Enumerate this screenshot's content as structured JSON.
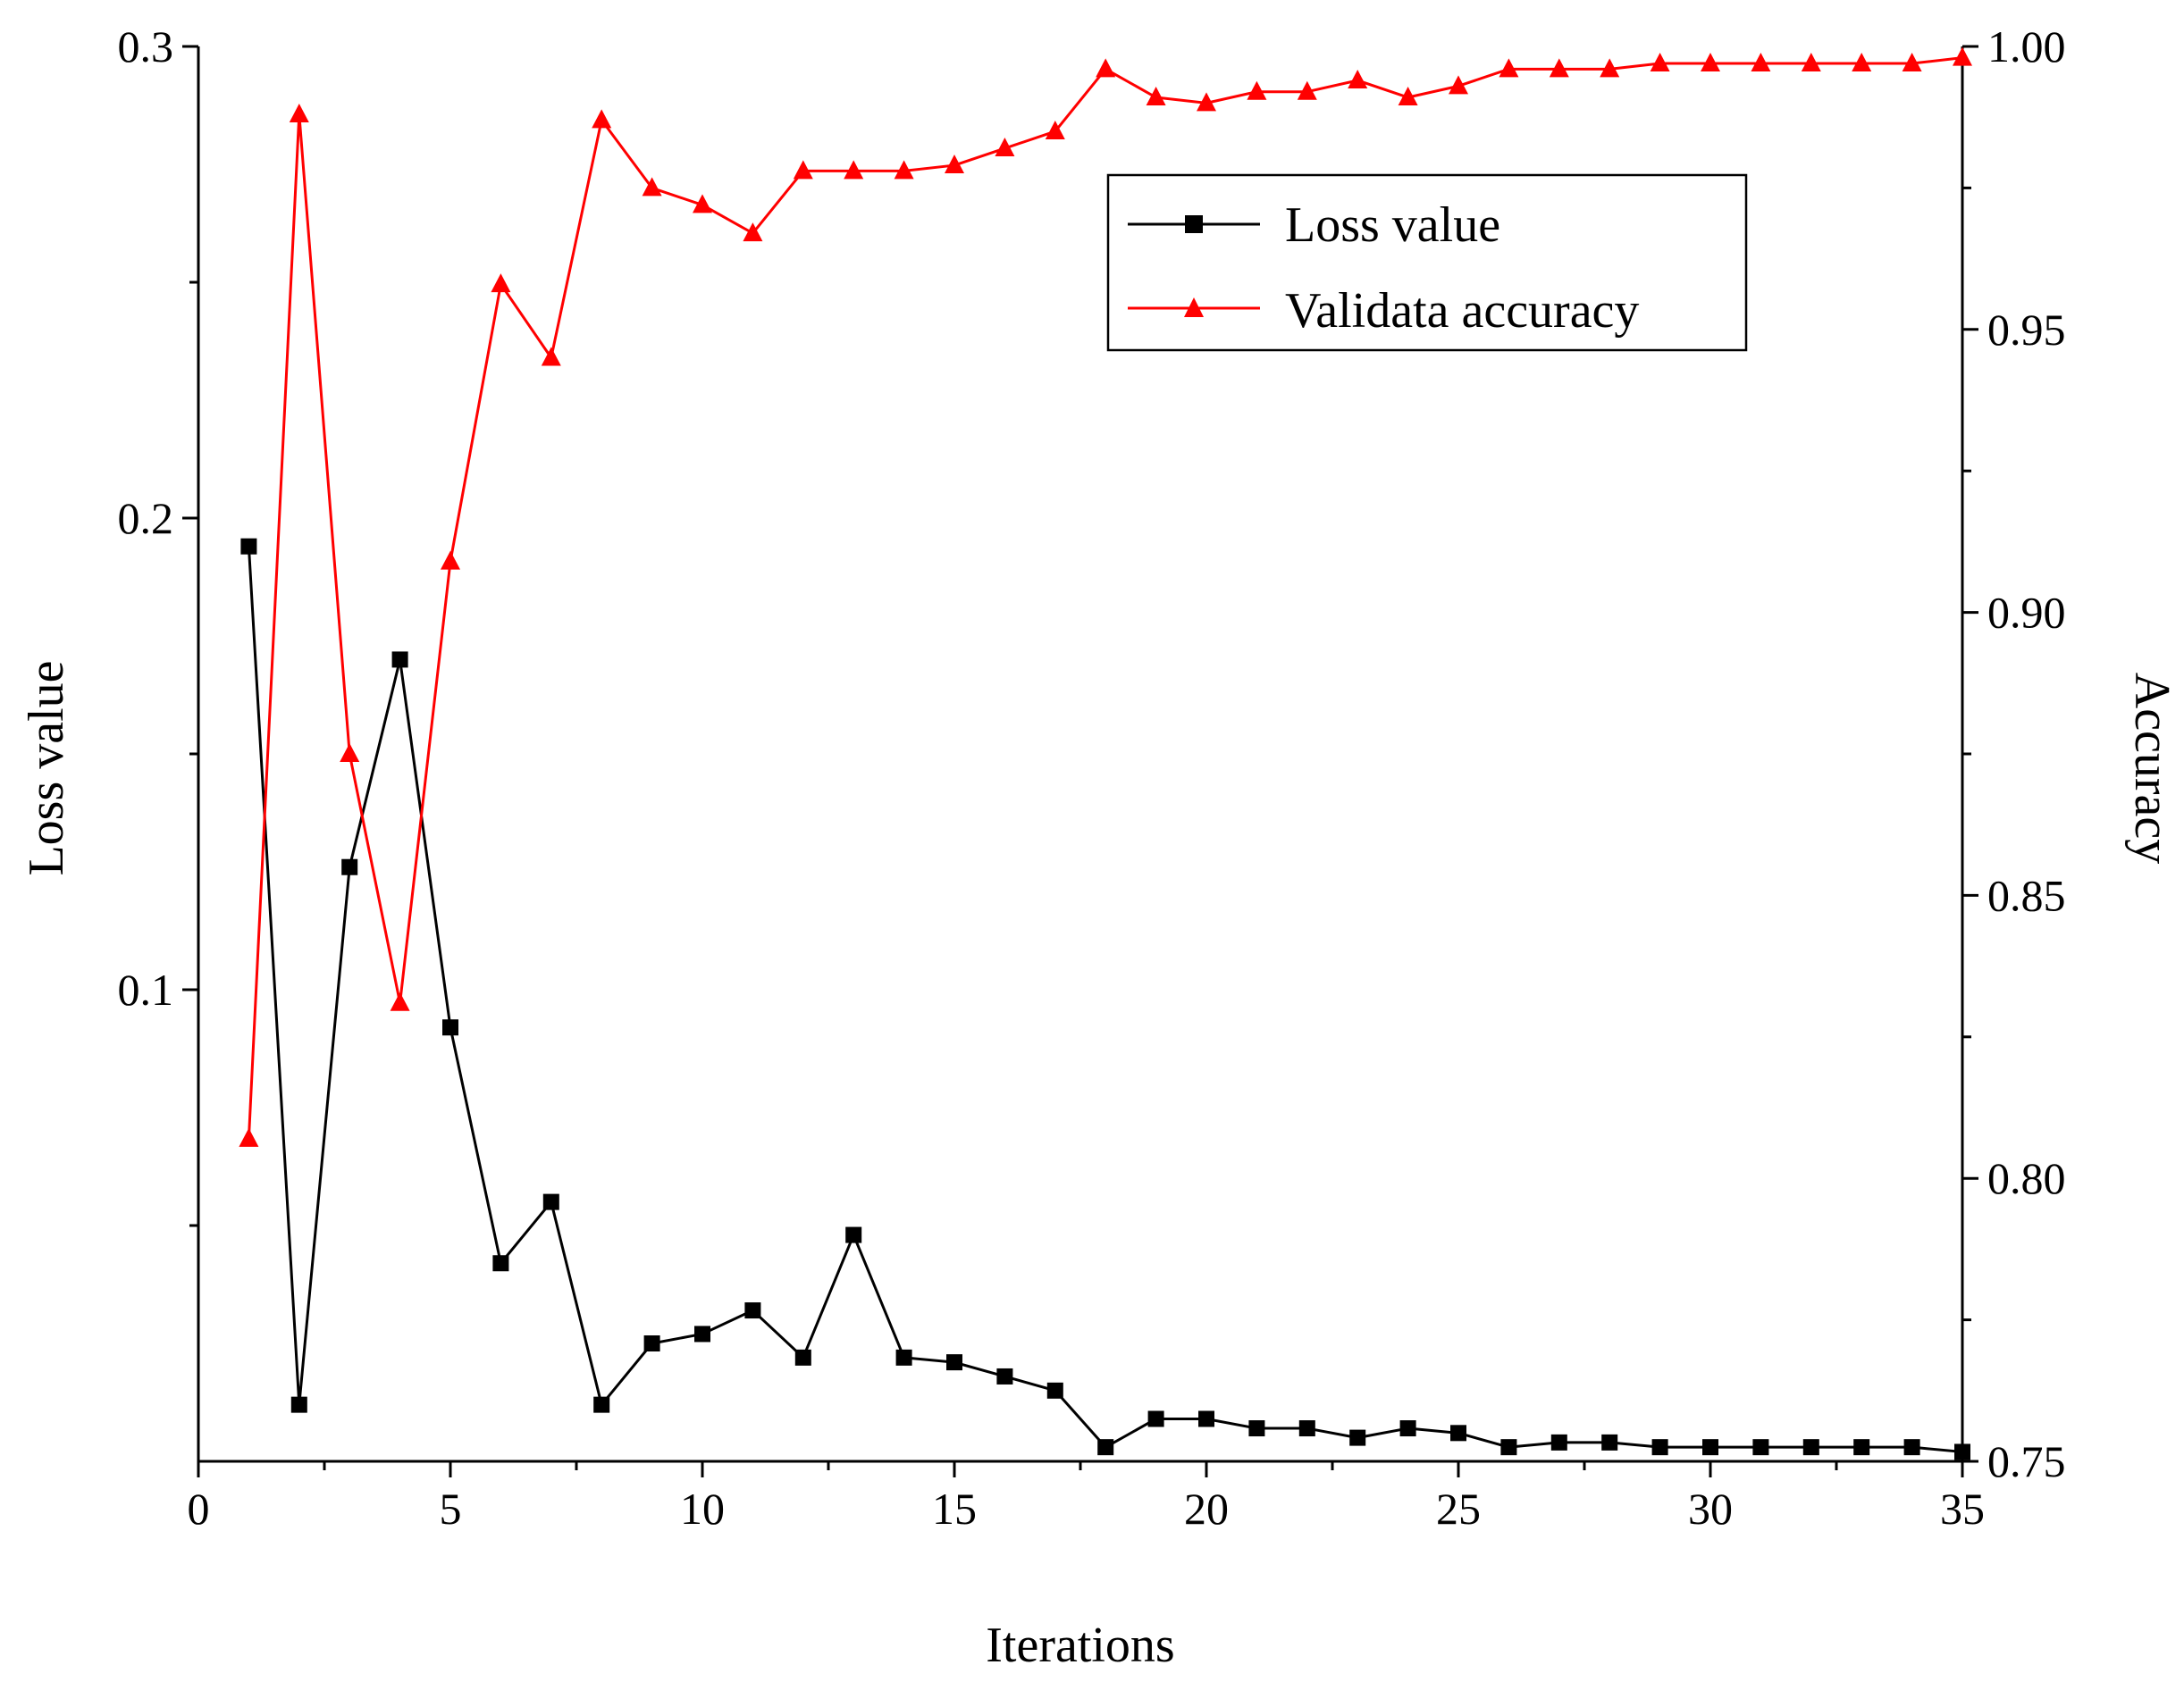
{
  "chart_data": {
    "type": "line",
    "xlabel": "Iterations",
    "ylabel_left": "Loss value",
    "ylabel_right": "Accuracy",
    "xlim": [
      0,
      35
    ],
    "ylim_left": [
      0,
      0.3
    ],
    "ylim_right": [
      0.75,
      1.0
    ],
    "x_ticks": [
      "0",
      "5",
      "10",
      "15",
      "20",
      "25",
      "30",
      "35"
    ],
    "y_left_ticks": [
      "0.1",
      "0.2",
      "0.3"
    ],
    "y_right_ticks": [
      "0.75",
      "0.80",
      "0.85",
      "0.90",
      "0.95",
      "1.00"
    ],
    "grid": false,
    "legend_position": "top-right",
    "series": [
      {
        "name": "Loss value",
        "axis": "left",
        "color": "#000000",
        "marker": "square",
        "x": [
          1,
          2,
          3,
          4,
          5,
          6,
          7,
          8,
          9,
          10,
          11,
          12,
          13,
          14,
          15,
          16,
          17,
          18,
          19,
          20,
          21,
          22,
          23,
          24,
          25,
          26,
          27,
          28,
          29,
          30,
          31,
          32,
          33,
          34,
          35
        ],
        "values": [
          0.194,
          0.012,
          0.126,
          0.17,
          0.092,
          0.042,
          0.055,
          0.012,
          0.025,
          0.027,
          0.032,
          0.022,
          0.048,
          0.022,
          0.021,
          0.018,
          0.015,
          0.003,
          0.009,
          0.009,
          0.007,
          0.007,
          0.005,
          0.007,
          0.006,
          0.003,
          0.004,
          0.004,
          0.003,
          0.003,
          0.003,
          0.003,
          0.003,
          0.003,
          0.002
        ]
      },
      {
        "name": "Validata accuracy",
        "axis": "right",
        "color": "#ff0000",
        "marker": "triangle",
        "x": [
          1,
          2,
          3,
          4,
          5,
          6,
          7,
          8,
          9,
          10,
          11,
          12,
          13,
          14,
          15,
          16,
          17,
          18,
          19,
          20,
          21,
          22,
          23,
          24,
          25,
          26,
          27,
          28,
          29,
          30,
          31,
          32,
          33,
          34,
          35
        ],
        "values": [
          0.807,
          0.988,
          0.875,
          0.831,
          0.909,
          0.958,
          0.945,
          0.987,
          0.975,
          0.972,
          0.967,
          0.978,
          0.978,
          0.978,
          0.979,
          0.982,
          0.985,
          0.996,
          0.991,
          0.99,
          0.992,
          0.992,
          0.994,
          0.991,
          0.993,
          0.996,
          0.996,
          0.996,
          0.997,
          0.997,
          0.997,
          0.997,
          0.997,
          0.997,
          0.998
        ]
      }
    ]
  }
}
